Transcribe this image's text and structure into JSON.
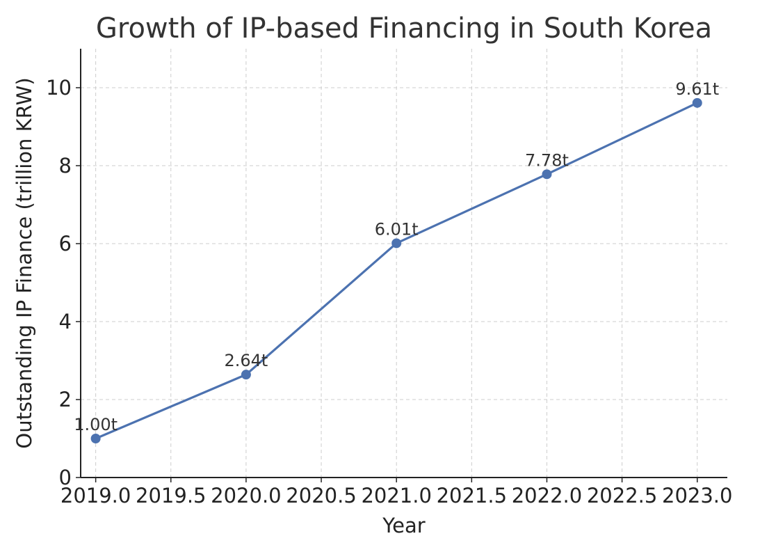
{
  "chart_data": {
    "type": "line",
    "title": "Growth of IP-based Financing in South Korea",
    "xlabel": "Year",
    "ylabel": "Outstanding IP Finance (trillion KRW)",
    "x": [
      2019,
      2020,
      2021,
      2022,
      2023
    ],
    "series": [
      {
        "values": [
          1.0,
          2.64,
          6.01,
          7.78,
          9.61
        ],
        "labels": [
          "1.00t",
          "2.64t",
          "6.01t",
          "7.78t",
          "9.61t"
        ],
        "color": "#4c72b0"
      }
    ],
    "xlim": [
      2018.9,
      2023.2
    ],
    "ylim": [
      0,
      11
    ],
    "xticks": [
      2019.0,
      2019.5,
      2020.0,
      2020.5,
      2021.0,
      2021.5,
      2022.0,
      2022.5,
      2023.0
    ],
    "xtick_labels": [
      "2019.0",
      "2019.5",
      "2020.0",
      "2020.5",
      "2021.0",
      "2021.5",
      "2022.0",
      "2022.5",
      "2023.0"
    ],
    "yticks": [
      0,
      2,
      4,
      6,
      8,
      10
    ],
    "ytick_labels": [
      "0",
      "2",
      "4",
      "6",
      "8",
      "10"
    ],
    "grid": true,
    "legend": "none"
  }
}
